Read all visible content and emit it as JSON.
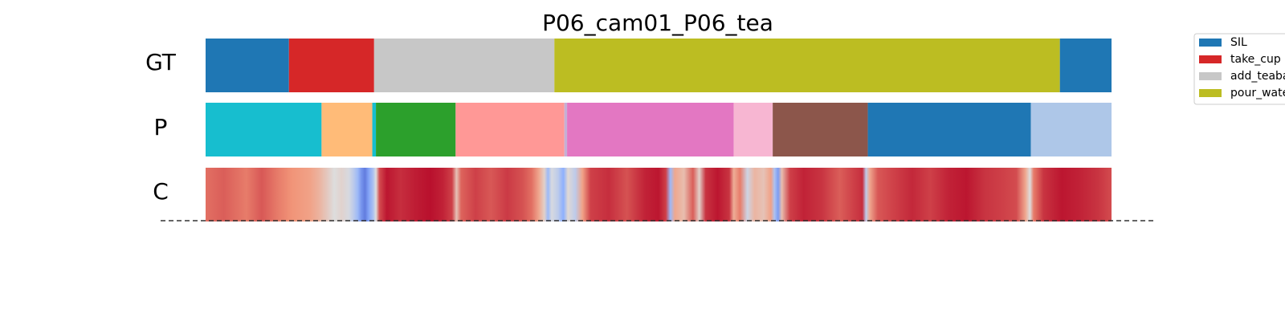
{
  "chart_data": {
    "type": "heatmap",
    "title": "P06_cam01_P06_tea",
    "row_labels": {
      "gt": "GT",
      "pred": "P",
      "conf": "C"
    },
    "x_domain": [
      0,
      1
    ],
    "legend_placement": "top-right",
    "legend": [
      {
        "label": "SIL",
        "color": "#1f77b4"
      },
      {
        "label": "take_cup",
        "color": "#d62728"
      },
      {
        "label": "add_teabag",
        "color": "#c7c7c7"
      },
      {
        "label": "pour_water",
        "color": "#bcbd22"
      }
    ],
    "gt_segments": [
      {
        "label": "SIL",
        "start": 0.0,
        "end": 0.092,
        "color": "#1f77b4"
      },
      {
        "label": "take_cup",
        "start": 0.092,
        "end": 0.186,
        "color": "#d62728"
      },
      {
        "label": "add_teabag",
        "start": 0.186,
        "end": 0.385,
        "color": "#c7c7c7"
      },
      {
        "label": "pour_water",
        "start": 0.385,
        "end": 0.943,
        "color": "#bcbd22"
      },
      {
        "label": "SIL",
        "start": 0.943,
        "end": 1.0,
        "color": "#1f77b4"
      }
    ],
    "pred_segments": [
      {
        "start": 0.0,
        "end": 0.128,
        "color": "#17becf"
      },
      {
        "start": 0.128,
        "end": 0.184,
        "color": "#ffbb78"
      },
      {
        "start": 0.184,
        "end": 0.188,
        "color": "#17becf"
      },
      {
        "start": 0.188,
        "end": 0.276,
        "color": "#2ca02c"
      },
      {
        "start": 0.276,
        "end": 0.396,
        "color": "#ff9896"
      },
      {
        "start": 0.396,
        "end": 0.399,
        "color": "#c5b0d5"
      },
      {
        "start": 0.399,
        "end": 0.583,
        "color": "#e377c2"
      },
      {
        "start": 0.583,
        "end": 0.626,
        "color": "#f7b6d2"
      },
      {
        "start": 0.626,
        "end": 0.731,
        "color": "#8c564b"
      },
      {
        "start": 0.731,
        "end": 0.911,
        "color": "#1f77b4"
      },
      {
        "start": 0.911,
        "end": 1.0,
        "color": "#aec7e8"
      }
    ],
    "confidence_points": [
      [
        0.0,
        0.82
      ],
      [
        0.02,
        0.85
      ],
      [
        0.045,
        0.8
      ],
      [
        0.062,
        0.86
      ],
      [
        0.08,
        0.8
      ],
      [
        0.095,
        0.76
      ],
      [
        0.115,
        0.72
      ],
      [
        0.125,
        0.66
      ],
      [
        0.135,
        0.57
      ],
      [
        0.142,
        0.5
      ],
      [
        0.15,
        0.54
      ],
      [
        0.158,
        0.48
      ],
      [
        0.163,
        0.4
      ],
      [
        0.168,
        0.3
      ],
      [
        0.172,
        0.18
      ],
      [
        0.176,
        0.12
      ],
      [
        0.18,
        0.22
      ],
      [
        0.185,
        0.35
      ],
      [
        0.188,
        0.5
      ],
      [
        0.192,
        0.88
      ],
      [
        0.2,
        0.97
      ],
      [
        0.215,
        0.93
      ],
      [
        0.232,
        0.96
      ],
      [
        0.248,
        0.98
      ],
      [
        0.262,
        0.95
      ],
      [
        0.272,
        0.9
      ],
      [
        0.277,
        0.6
      ],
      [
        0.282,
        0.84
      ],
      [
        0.298,
        0.9
      ],
      [
        0.315,
        0.86
      ],
      [
        0.333,
        0.91
      ],
      [
        0.35,
        0.87
      ],
      [
        0.36,
        0.82
      ],
      [
        0.368,
        0.7
      ],
      [
        0.374,
        0.55
      ],
      [
        0.378,
        0.3
      ],
      [
        0.382,
        0.48
      ],
      [
        0.389,
        0.4
      ],
      [
        0.395,
        0.25
      ],
      [
        0.4,
        0.52
      ],
      [
        0.408,
        0.4
      ],
      [
        0.416,
        0.72
      ],
      [
        0.425,
        0.9
      ],
      [
        0.445,
        0.93
      ],
      [
        0.465,
        0.87
      ],
      [
        0.485,
        0.95
      ],
      [
        0.5,
        0.97
      ],
      [
        0.508,
        0.9
      ],
      [
        0.513,
        0.3
      ],
      [
        0.518,
        0.7
      ],
      [
        0.528,
        0.62
      ],
      [
        0.538,
        0.85
      ],
      [
        0.545,
        0.55
      ],
      [
        0.552,
        0.92
      ],
      [
        0.565,
        0.97
      ],
      [
        0.578,
        0.92
      ],
      [
        0.583,
        0.68
      ],
      [
        0.59,
        0.8
      ],
      [
        0.598,
        0.45
      ],
      [
        0.606,
        0.65
      ],
      [
        0.616,
        0.6
      ],
      [
        0.624,
        0.72
      ],
      [
        0.628,
        0.35
      ],
      [
        0.632,
        0.2
      ],
      [
        0.636,
        0.62
      ],
      [
        0.645,
        0.9
      ],
      [
        0.66,
        0.95
      ],
      [
        0.68,
        0.92
      ],
      [
        0.7,
        0.85
      ],
      [
        0.715,
        0.9
      ],
      [
        0.725,
        0.93
      ],
      [
        0.729,
        0.4
      ],
      [
        0.733,
        0.7
      ],
      [
        0.742,
        0.86
      ],
      [
        0.76,
        0.9
      ],
      [
        0.78,
        0.94
      ],
      [
        0.8,
        0.9
      ],
      [
        0.82,
        0.95
      ],
      [
        0.84,
        0.97
      ],
      [
        0.86,
        0.92
      ],
      [
        0.88,
        0.9
      ],
      [
        0.895,
        0.88
      ],
      [
        0.905,
        0.7
      ],
      [
        0.91,
        0.5
      ],
      [
        0.914,
        0.8
      ],
      [
        0.925,
        0.92
      ],
      [
        0.945,
        0.97
      ],
      [
        0.965,
        0.95
      ],
      [
        0.985,
        0.92
      ],
      [
        1.0,
        0.88
      ]
    ]
  }
}
